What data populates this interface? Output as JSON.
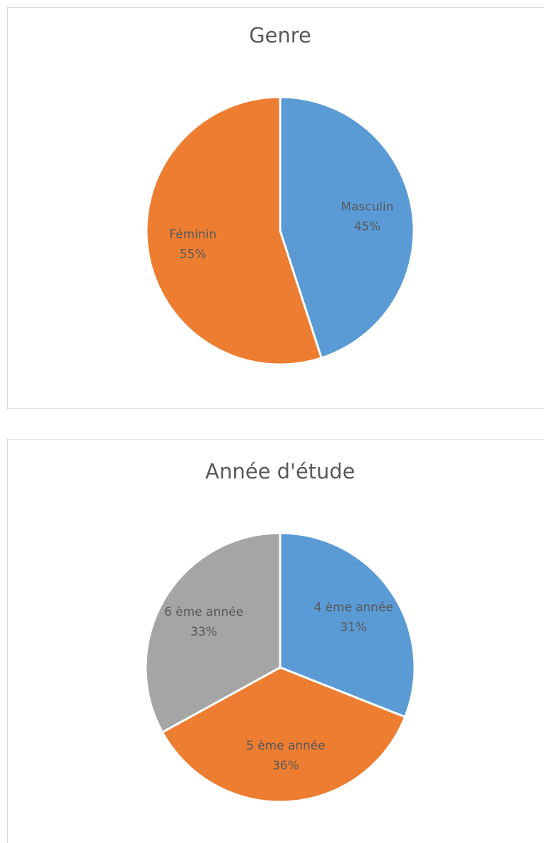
{
  "chart_data": [
    {
      "type": "pie",
      "title": "Genre",
      "categories": [
        "Masculin",
        "Féminin"
      ],
      "values": [
        45,
        55
      ],
      "value_labels": [
        "45%",
        "55%"
      ],
      "colors": [
        "#5b9bd5",
        "#ed7d31"
      ]
    },
    {
      "type": "pie",
      "title": "Année d'étude",
      "categories": [
        "4 ème année",
        "5 ème année",
        "6 ème année"
      ],
      "values": [
        31,
        36,
        33
      ],
      "value_labels": [
        "31%",
        "36%",
        "33%"
      ],
      "colors": [
        "#5b9bd5",
        "#ed7d31",
        "#a5a5a5"
      ]
    }
  ]
}
